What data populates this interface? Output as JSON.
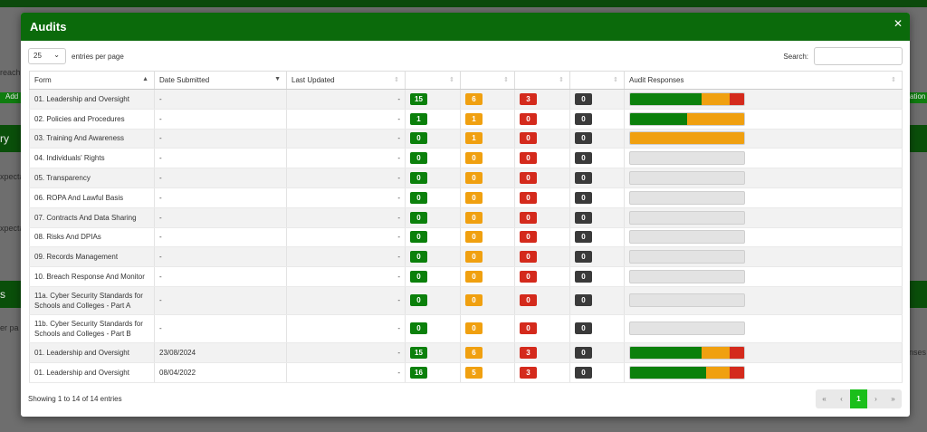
{
  "background": {
    "fragments": [
      "reach",
      "Add",
      "ry",
      "xpecta",
      "xpecta",
      "s",
      "er pa",
      "nses",
      "ation"
    ]
  },
  "modal": {
    "title": "Audits",
    "close_icon": "close-icon"
  },
  "controls": {
    "page_length": "25",
    "page_length_label": "entries per page",
    "search_label": "Search:",
    "search_value": ""
  },
  "table": {
    "columns": [
      "Form",
      "Date Submitted",
      "Last Updated",
      "",
      "",
      "",
      "",
      "Audit Responses"
    ],
    "rows": [
      {
        "form": "01. Leadership and Oversight",
        "submitted": "-",
        "updated": "-",
        "green": 15,
        "orange": 6,
        "red": 3,
        "black": 0,
        "progress": [
          62.5,
          25,
          12.5
        ]
      },
      {
        "form": "02. Policies and Procedures",
        "submitted": "-",
        "updated": "-",
        "green": 1,
        "orange": 1,
        "red": 0,
        "black": 0,
        "progress": [
          50,
          50,
          0
        ]
      },
      {
        "form": "03. Training And Awareness",
        "submitted": "-",
        "updated": "-",
        "green": 0,
        "orange": 1,
        "red": 0,
        "black": 0,
        "progress": [
          0,
          100,
          0
        ]
      },
      {
        "form": "04. Individuals' Rights",
        "submitted": "-",
        "updated": "-",
        "green": 0,
        "orange": 0,
        "red": 0,
        "black": 0,
        "progress": [
          0,
          0,
          0
        ]
      },
      {
        "form": "05. Transparency",
        "submitted": "-",
        "updated": "-",
        "green": 0,
        "orange": 0,
        "red": 0,
        "black": 0,
        "progress": [
          0,
          0,
          0
        ]
      },
      {
        "form": "06. ROPA And Lawful Basis",
        "submitted": "-",
        "updated": "-",
        "green": 0,
        "orange": 0,
        "red": 0,
        "black": 0,
        "progress": [
          0,
          0,
          0
        ]
      },
      {
        "form": "07. Contracts And Data Sharing",
        "submitted": "-",
        "updated": "-",
        "green": 0,
        "orange": 0,
        "red": 0,
        "black": 0,
        "progress": [
          0,
          0,
          0
        ]
      },
      {
        "form": "08. Risks And DPIAs",
        "submitted": "-",
        "updated": "-",
        "green": 0,
        "orange": 0,
        "red": 0,
        "black": 0,
        "progress": [
          0,
          0,
          0
        ]
      },
      {
        "form": "09. Records Management",
        "submitted": "-",
        "updated": "-",
        "green": 0,
        "orange": 0,
        "red": 0,
        "black": 0,
        "progress": [
          0,
          0,
          0
        ]
      },
      {
        "form": "10. Breach Response And Monitor",
        "submitted": "-",
        "updated": "-",
        "green": 0,
        "orange": 0,
        "red": 0,
        "black": 0,
        "progress": [
          0,
          0,
          0
        ]
      },
      {
        "form": "11a. Cyber Security Standards for Schools and Colleges - Part A",
        "submitted": "-",
        "updated": "-",
        "green": 0,
        "orange": 0,
        "red": 0,
        "black": 0,
        "progress": [
          0,
          0,
          0
        ],
        "tall": true
      },
      {
        "form": "11b. Cyber Security Standards for Schools and Colleges - Part B",
        "submitted": "-",
        "updated": "-",
        "green": 0,
        "orange": 0,
        "red": 0,
        "black": 0,
        "progress": [
          0,
          0,
          0
        ],
        "tall": true
      },
      {
        "form": "01. Leadership and Oversight",
        "submitted": "23/08/2024",
        "updated": "-",
        "green": 15,
        "orange": 6,
        "red": 3,
        "black": 0,
        "progress": [
          62.5,
          25,
          12.5
        ]
      },
      {
        "form": "01. Leadership and Oversight",
        "submitted": "08/04/2022",
        "updated": "-",
        "green": 16,
        "orange": 5,
        "red": 3,
        "black": 0,
        "progress": [
          66.7,
          20.8,
          12.5
        ]
      }
    ]
  },
  "footer": {
    "info": "Showing 1 to 14 of 14 entries",
    "pager": [
      "«",
      "‹",
      "1",
      "›",
      "»"
    ],
    "current_page": "1"
  },
  "colors": {
    "header": "#0b6a0b",
    "green": "#0b800b",
    "orange": "#f0a010",
    "red": "#d42a1c",
    "black": "#3a3a3a",
    "pager_active": "#1bbf1b"
  }
}
